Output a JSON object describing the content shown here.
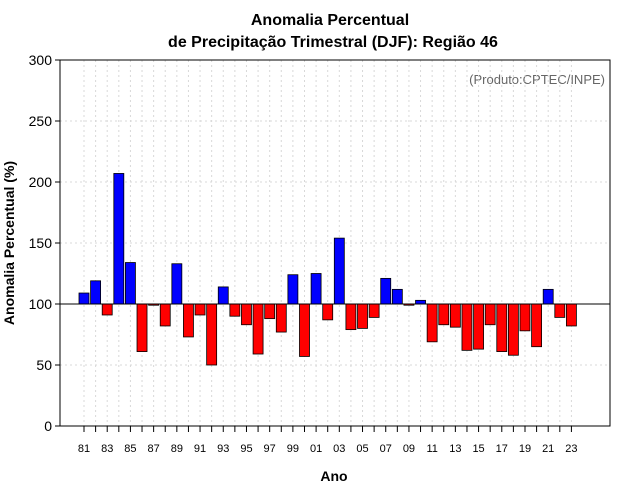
{
  "chart_data": {
    "type": "bar",
    "title_line1": "Anomalia Percentual",
    "title_line2": "de Precipitação Trimestral (DJF): Região 46",
    "xlabel": "Ano",
    "ylabel": "Anomalia Percentual (%)",
    "annotation": "(Produto:CPTEC/INPE)",
    "ylim": [
      0,
      300
    ],
    "yticks": [
      0,
      50,
      100,
      150,
      200,
      250,
      300
    ],
    "baseline": 100,
    "above_color": "#0000ff",
    "below_color": "#ff0000",
    "xtick_labels": [
      "81",
      "83",
      "85",
      "87",
      "89",
      "91",
      "93",
      "95",
      "97",
      "99",
      "01",
      "03",
      "05",
      "07",
      "09",
      "11",
      "13",
      "15",
      "17",
      "19",
      "21",
      "23"
    ],
    "categories": [
      "1981",
      "1982",
      "1983",
      "1984",
      "1985",
      "1986",
      "1987",
      "1988",
      "1989",
      "1990",
      "1991",
      "1992",
      "1993",
      "1994",
      "1995",
      "1996",
      "1997",
      "1998",
      "1999",
      "2000",
      "2001",
      "2002",
      "2003",
      "2004",
      "2005",
      "2006",
      "2007",
      "2008",
      "2009",
      "2010",
      "2011",
      "2012",
      "2013",
      "2014",
      "2015",
      "2016",
      "2017",
      "2018",
      "2019",
      "2020",
      "2021",
      "2022",
      "2023"
    ],
    "values": [
      109,
      119,
      91,
      207,
      134,
      61,
      99,
      82,
      133,
      73,
      91,
      50,
      114,
      90,
      83,
      59,
      88,
      77,
      124,
      57,
      125,
      87,
      154,
      79,
      80,
      89,
      121,
      112,
      99,
      103,
      69,
      83,
      81,
      62,
      63,
      83,
      61,
      58,
      78,
      65,
      112,
      89,
      82
    ]
  }
}
